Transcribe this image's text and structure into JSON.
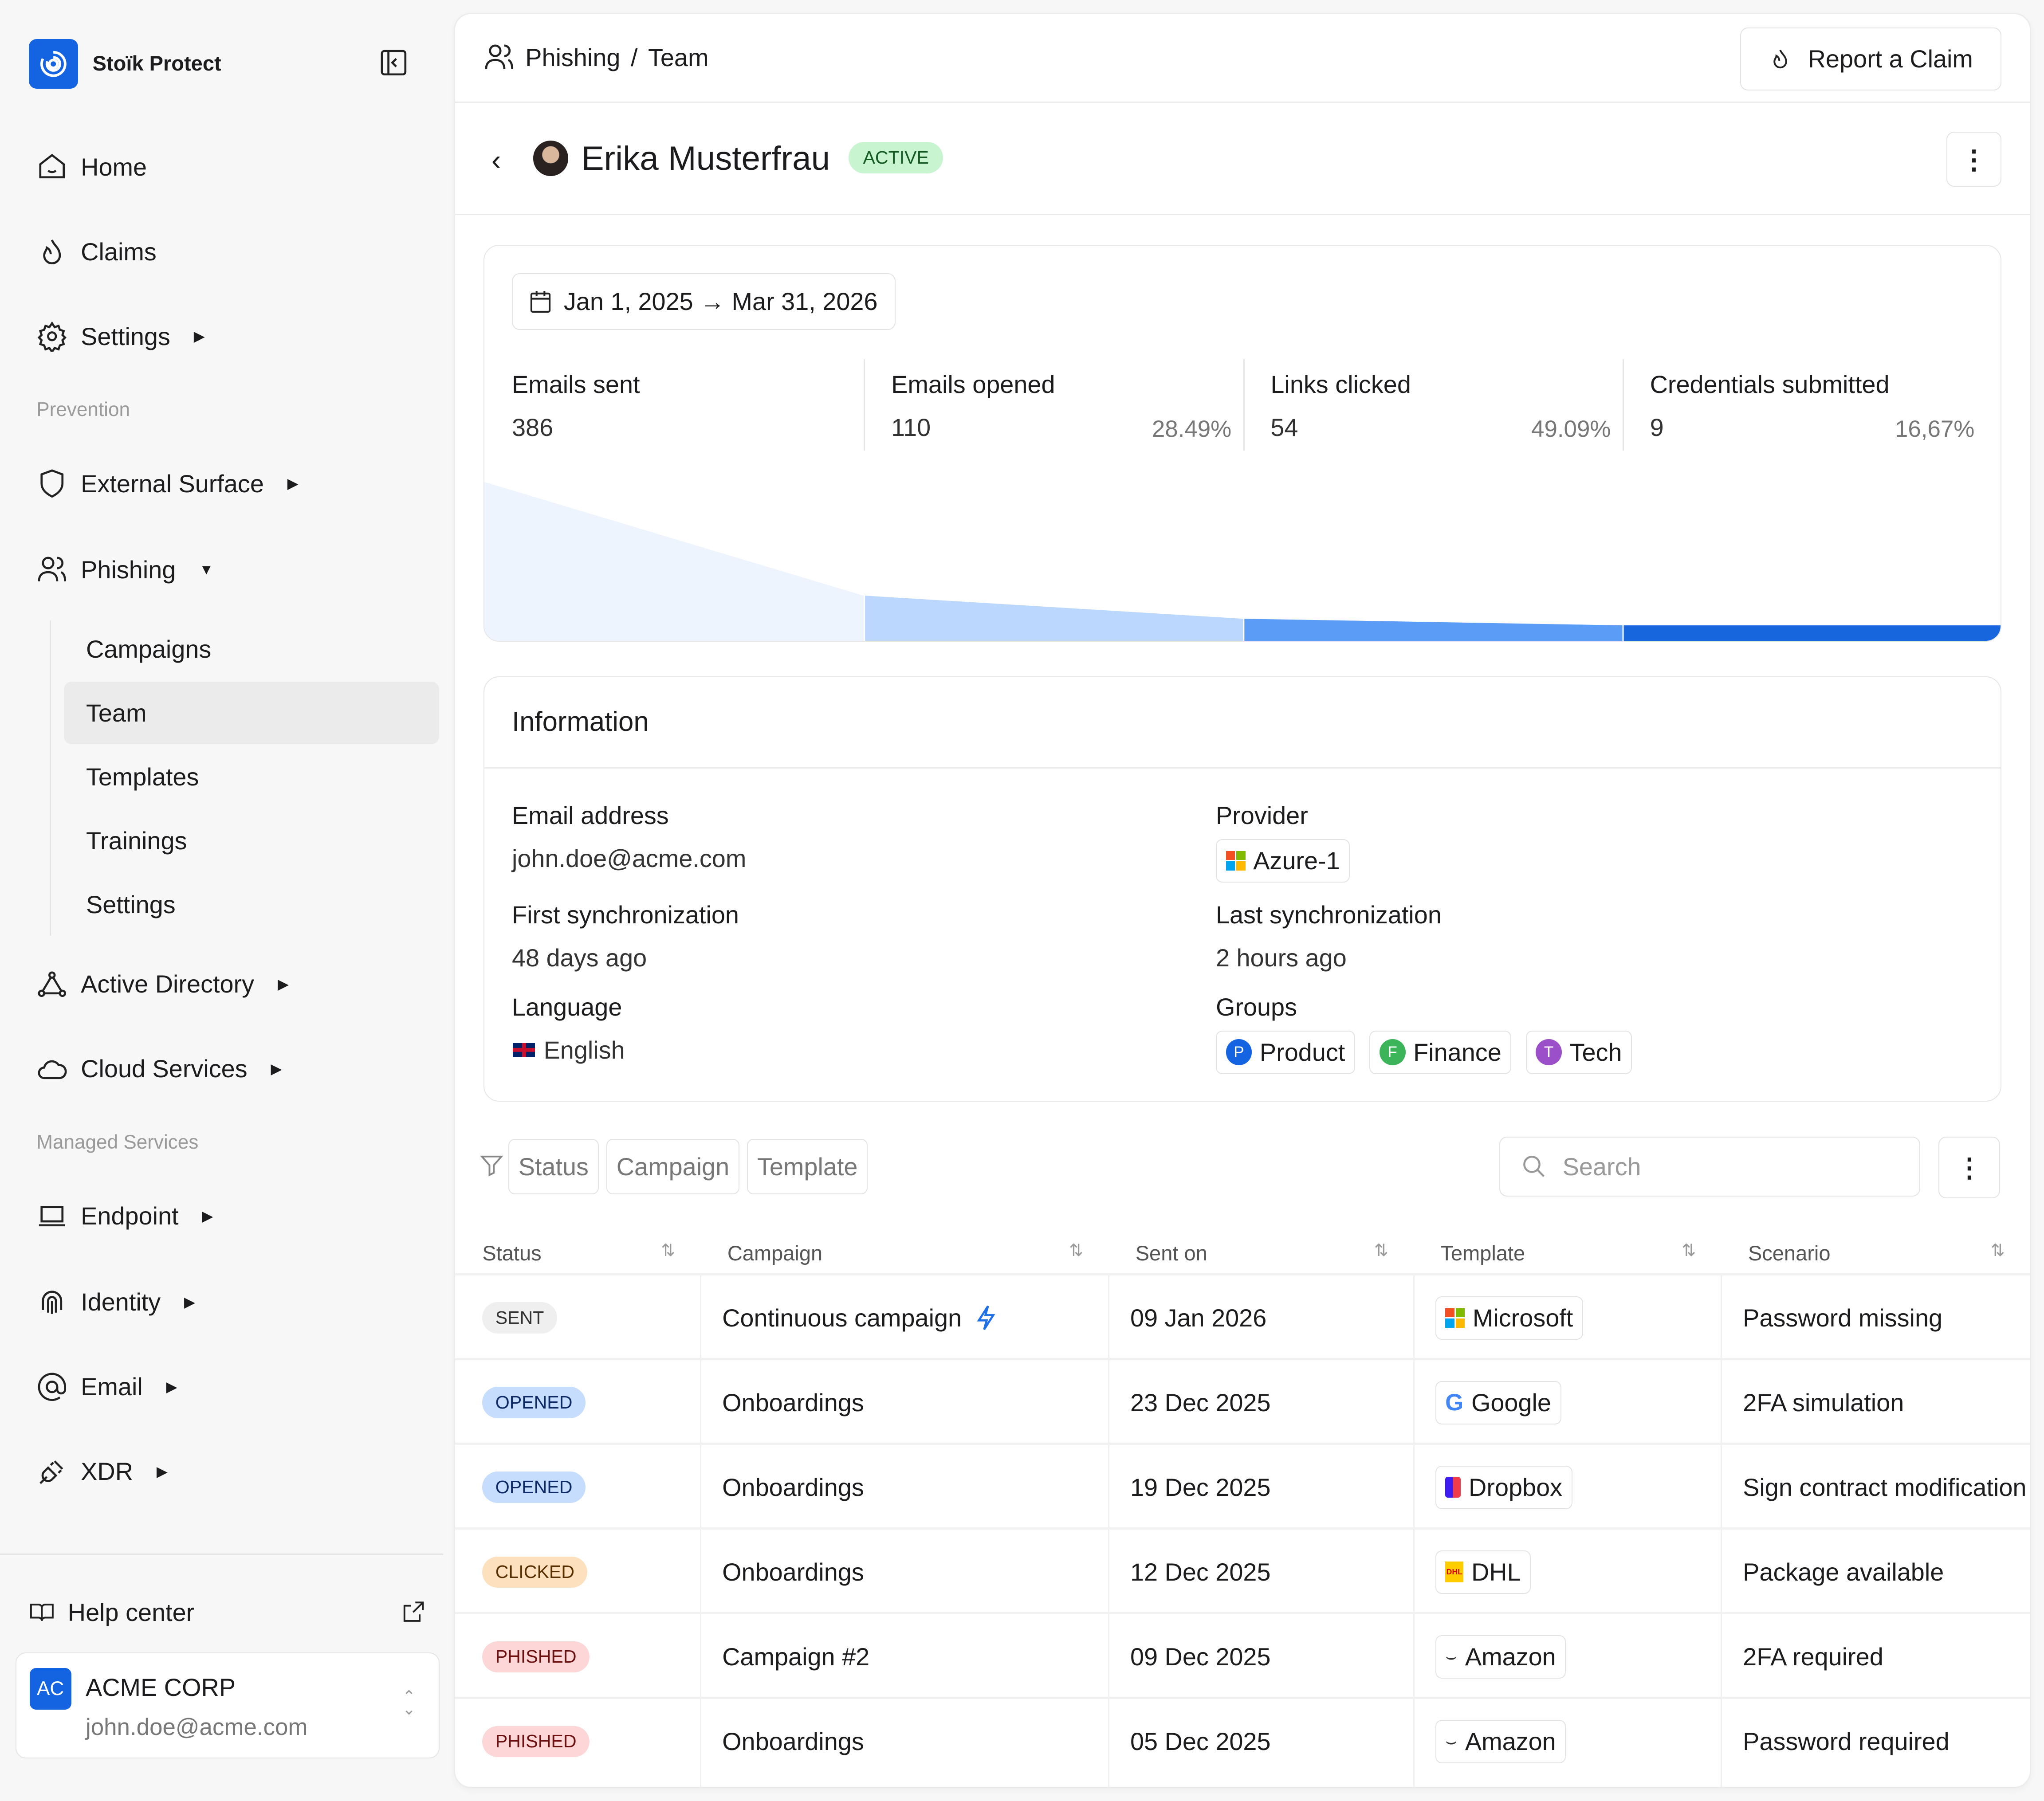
{
  "app": {
    "name": "Stoïk Protect"
  },
  "sidebar": {
    "items": [
      {
        "label": "Home",
        "icon": "home-icon"
      },
      {
        "label": "Claims",
        "icon": "flame-icon"
      },
      {
        "label": "Settings",
        "icon": "gear-icon"
      }
    ],
    "prevention_label": "Prevention",
    "prevention": [
      {
        "label": "External Surface",
        "icon": "shield-icon"
      },
      {
        "label": "Phishing",
        "icon": "users-icon"
      }
    ],
    "phishing_sub": [
      "Campaigns",
      "Team",
      "Templates",
      "Trainings",
      "Settings"
    ],
    "prevention2": [
      {
        "label": "Active Directory",
        "icon": "network-icon"
      },
      {
        "label": "Cloud Services",
        "icon": "cloud-icon"
      }
    ],
    "managed_label": "Managed Services",
    "managed": [
      {
        "label": "Endpoint",
        "icon": "laptop-icon"
      },
      {
        "label": "Identity",
        "icon": "fingerprint-icon"
      },
      {
        "label": "Email",
        "icon": "at-icon"
      },
      {
        "label": "XDR",
        "icon": "plug-icon"
      }
    ],
    "help": "Help center",
    "account": {
      "initials": "AC",
      "name": "ACME CORP",
      "email": "john.doe@acme.com"
    }
  },
  "header": {
    "breadcrumb": [
      "Phishing",
      "/",
      "Team"
    ],
    "report_button": "Report a Claim"
  },
  "profile": {
    "name": "Erika Musterfrau",
    "status": "ACTIVE"
  },
  "stats": {
    "date_range": "Jan 1, 2025 → Mar 31, 2026",
    "items": [
      {
        "label": "Emails sent",
        "value": "386",
        "pct": ""
      },
      {
        "label": "Emails opened",
        "value": "110",
        "pct": "28.49%"
      },
      {
        "label": "Links clicked",
        "value": "54",
        "pct": "49.09%"
      },
      {
        "label": "Credentials submitted",
        "value": "9",
        "pct": "16,67%"
      }
    ],
    "funnel_values": [
      386,
      110,
      54,
      9
    ],
    "colors": [
      "#eef4fe",
      "#bcd7fd",
      "#5b9cf7",
      "#1766de"
    ]
  },
  "info": {
    "title": "Information",
    "email_label": "Email address",
    "email": "john.doe@acme.com",
    "provider_label": "Provider",
    "provider": "Azure-1",
    "first_sync_label": "First synchronization",
    "first_sync": "48 days ago",
    "last_sync_label": "Last synchronization",
    "last_sync": "2 hours ago",
    "language_label": "Language",
    "language": "English",
    "groups_label": "Groups",
    "groups": [
      {
        "initial": "P",
        "name": "Product",
        "color": "#1463e0"
      },
      {
        "initial": "F",
        "name": "Finance",
        "color": "#3cb55a"
      },
      {
        "initial": "T",
        "name": "Tech",
        "color": "#9b4fc9"
      }
    ]
  },
  "filters": {
    "chips": [
      "Status",
      "Campaign",
      "Template"
    ],
    "search_placeholder": "Search"
  },
  "table": {
    "columns": [
      "Status",
      "Campaign",
      "Sent on",
      "Template",
      "Scenario"
    ],
    "rows": [
      {
        "status": "SENT",
        "campaign": "Continuous campaign",
        "sent": "09 Jan 2026",
        "template": "Microsoft",
        "scenario": "Password missing"
      },
      {
        "status": "OPENED",
        "campaign": "Onboardings",
        "sent": "23 Dec 2025",
        "template": "Google",
        "scenario": "2FA simulation"
      },
      {
        "status": "OPENED",
        "campaign": "Onboardings",
        "sent": "19 Dec 2025",
        "template": "Dropbox",
        "scenario": "Sign contract modification"
      },
      {
        "status": "CLICKED",
        "campaign": "Onboardings",
        "sent": "12 Dec 2025",
        "template": "DHL",
        "scenario": "Package available"
      },
      {
        "status": "PHISHED",
        "campaign": "Campaign #2",
        "sent": "09 Dec 2025",
        "template": "Amazon",
        "scenario": "2FA required"
      },
      {
        "status": "PHISHED",
        "campaign": "Onboardings",
        "sent": "05 Dec 2025",
        "template": "Amazon",
        "scenario": "Password required"
      }
    ],
    "status_colors": {
      "SENT": [
        "#efefef",
        "#333"
      ],
      "OPENED": [
        "#c6ddfd",
        "#0d2a66"
      ],
      "CLICKED": [
        "#fde1bf",
        "#5a2f00"
      ],
      "PHISHED": [
        "#fdd7d7",
        "#6b0f0f"
      ]
    }
  }
}
